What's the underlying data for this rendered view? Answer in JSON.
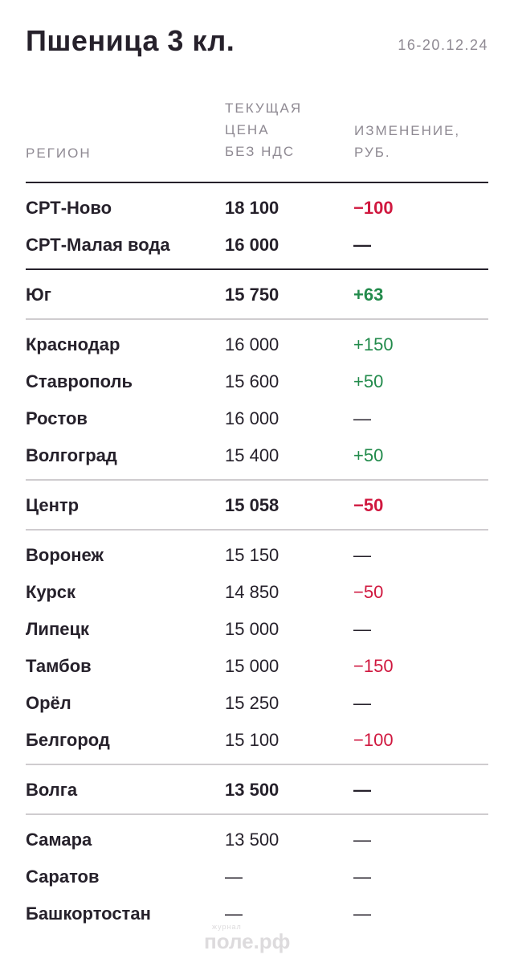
{
  "title": "Пшеница 3 кл.",
  "date": "16-20.12.24",
  "headers": {
    "region": [
      "РЕГИОН"
    ],
    "price": [
      "ТЕКУЩАЯ",
      "ЦЕНА",
      "БЕЗ НДС"
    ],
    "change": [
      "ИЗМЕНЕНИЕ,",
      "РУБ."
    ]
  },
  "rows": [
    {
      "region": "СРТ-Ново",
      "price": "18 100",
      "change": "−100",
      "trend": "neg",
      "bold": true
    },
    {
      "region": "СРТ-Малая вода",
      "price": "16 000",
      "change": "—",
      "trend": "neu",
      "bold": true
    },
    {
      "region": "Юг",
      "price": "15 750",
      "change": "+63",
      "trend": "pos",
      "bold": true
    },
    {
      "region": "Краснодар",
      "price": "16 000",
      "change": "+150",
      "trend": "pos",
      "bold": false
    },
    {
      "region": "Ставрополь",
      "price": "15 600",
      "change": "+50",
      "trend": "pos",
      "bold": false
    },
    {
      "region": "Ростов",
      "price": "16 000",
      "change": "—",
      "trend": "neu",
      "bold": false
    },
    {
      "region": "Волгоград",
      "price": "15 400",
      "change": "+50",
      "trend": "pos",
      "bold": false
    },
    {
      "region": "Центр",
      "price": "15 058",
      "change": "−50",
      "trend": "neg",
      "bold": true
    },
    {
      "region": "Воронеж",
      "price": "15 150",
      "change": "—",
      "trend": "neu",
      "bold": false
    },
    {
      "region": "Курск",
      "price": "14 850",
      "change": "−50",
      "trend": "neg",
      "bold": false
    },
    {
      "region": "Липецк",
      "price": "15 000",
      "change": "—",
      "trend": "neu",
      "bold": false
    },
    {
      "region": "Тамбов",
      "price": "15 000",
      "change": "−150",
      "trend": "neg",
      "bold": false
    },
    {
      "region": "Орёл",
      "price": "15 250",
      "change": "—",
      "trend": "neu",
      "bold": false
    },
    {
      "region": "Белгород",
      "price": "15 100",
      "change": "−100",
      "trend": "neg",
      "bold": false
    },
    {
      "region": "Волга",
      "price": "13 500",
      "change": "—",
      "trend": "neu",
      "bold": true
    },
    {
      "region": "Самара",
      "price": "13 500",
      "change": "—",
      "trend": "neu",
      "bold": false
    },
    {
      "region": "Саратов",
      "price": "—",
      "change": "—",
      "trend": "neu",
      "bold": false
    },
    {
      "region": "Башкортостан",
      "price": "—",
      "change": "—",
      "trend": "neu",
      "bold": false
    }
  ],
  "colors": {
    "negative": "#d0183f",
    "positive": "#238b4c",
    "text": "#26212b",
    "muted": "#8f8a93"
  },
  "watermark": {
    "small": "журнал",
    "big": "поле.рф"
  }
}
